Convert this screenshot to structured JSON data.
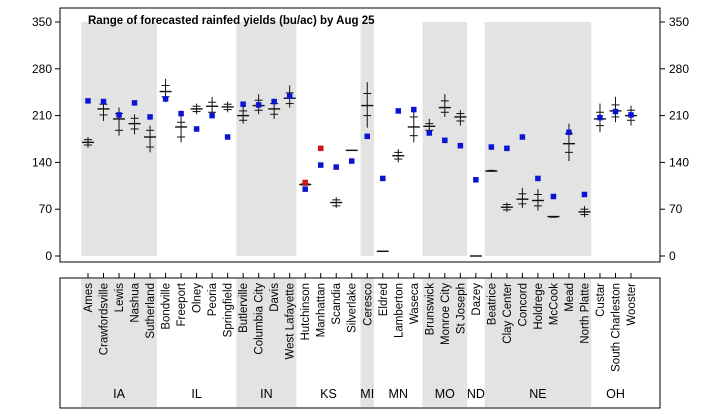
{
  "chart_data": {
    "type": "scatter",
    "title": "Range of forecasted rainfed yields (bu/ac) by Aug 25",
    "xlabel": "",
    "ylabel": "",
    "ylim": [
      0,
      350
    ],
    "y_ticks": [
      0,
      70,
      140,
      210,
      280,
      350
    ],
    "colors": {
      "shade": "#e3e3e3",
      "range_line": "#111111",
      "observed": "#0a14d2",
      "observed_alt": "#d21414"
    },
    "series": [
      {
        "name": "forecast_range",
        "description": "vertical line with tick marks"
      },
      {
        "name": "observed_point",
        "description": "square marker"
      }
    ],
    "groups": [
      {
        "state": "IA",
        "shaded": true,
        "stations": [
          "Ames",
          "Crawfordsville",
          "Lewis",
          "Nashua",
          "Sutherland"
        ]
      },
      {
        "state": "IL",
        "shaded": false,
        "stations": [
          "Bondville",
          "Freeport",
          "Olney",
          "Peoria",
          "Springfield"
        ]
      },
      {
        "state": "IN",
        "shaded": true,
        "stations": [
          "Butlerville",
          "Columbia City",
          "Davis",
          "West Lafayette"
        ]
      },
      {
        "state": "KS",
        "shaded": false,
        "stations": [
          "Hutchinson",
          "Manhattan",
          "Scandia",
          "Silverlake"
        ]
      },
      {
        "state": "MI",
        "shaded": true,
        "stations": [
          "Ceresco"
        ]
      },
      {
        "state": "MN",
        "shaded": false,
        "stations": [
          "Eldred",
          "Lamberton",
          "Waseca"
        ]
      },
      {
        "state": "MO",
        "shaded": true,
        "stations": [
          "Brunswick",
          "Monroe City",
          "St Joseph"
        ]
      },
      {
        "state": "ND",
        "shaded": false,
        "stations": [
          "Dazey"
        ]
      },
      {
        "state": "NE",
        "shaded": true,
        "stations": [
          "Beatrice",
          "Clay Center",
          "Concord",
          "Holdrege",
          "McCook",
          "Mead",
          "North Platte"
        ]
      },
      {
        "state": "OH",
        "shaded": false,
        "stations": [
          "Custar",
          "South Charleston",
          "Wooster"
        ]
      }
    ],
    "points": [
      {
        "station": "Ames",
        "lo": 162,
        "q1": 166,
        "median": 170,
        "q3": 174,
        "hi": 178,
        "observed": 232,
        "observed_color": "blue"
      },
      {
        "station": "Crawfordsville",
        "lo": 202,
        "q1": 211,
        "median": 220,
        "q3": 227,
        "hi": 235,
        "observed": 231,
        "observed_color": "blue"
      },
      {
        "station": "Lewis",
        "lo": 180,
        "q1": 188,
        "median": 205,
        "q3": 213,
        "hi": 222,
        "observed": 211,
        "observed_color": "blue"
      },
      {
        "station": "Nashua",
        "lo": 182,
        "q1": 190,
        "median": 198,
        "q3": 206,
        "hi": 212,
        "observed": 229,
        "observed_color": "blue"
      },
      {
        "station": "Sutherland",
        "lo": 155,
        "q1": 163,
        "median": 178,
        "q3": 188,
        "hi": 195,
        "observed": 208,
        "observed_color": "blue"
      },
      {
        "station": "Bondville",
        "lo": 230,
        "q1": 238,
        "median": 246,
        "q3": 255,
        "hi": 265,
        "observed": 235,
        "observed_color": "blue"
      },
      {
        "station": "Freeport",
        "lo": 170,
        "q1": 178,
        "median": 193,
        "q3": 200,
        "hi": 210,
        "observed": 213,
        "observed_color": "blue"
      },
      {
        "station": "Olney",
        "lo": 212,
        "q1": 216,
        "median": 220,
        "q3": 224,
        "hi": 228,
        "observed": 190,
        "observed_color": "blue"
      },
      {
        "station": "Peoria",
        "lo": 208,
        "q1": 215,
        "median": 224,
        "q3": 230,
        "hi": 238,
        "observed": 210,
        "observed_color": "blue"
      },
      {
        "station": "Springfield",
        "lo": 215,
        "q1": 219,
        "median": 223,
        "q3": 227,
        "hi": 231,
        "observed": 178,
        "observed_color": "blue"
      },
      {
        "station": "Butlerville",
        "lo": 198,
        "q1": 203,
        "median": 210,
        "q3": 217,
        "hi": 225,
        "observed": 227,
        "observed_color": "blue"
      },
      {
        "station": "Columbia City",
        "lo": 212,
        "q1": 218,
        "median": 225,
        "q3": 233,
        "hi": 242,
        "observed": 226,
        "observed_color": "blue"
      },
      {
        "station": "Davis",
        "lo": 205,
        "q1": 212,
        "median": 220,
        "q3": 228,
        "hi": 235,
        "observed": 231,
        "observed_color": "blue"
      },
      {
        "station": "West Lafayette",
        "lo": 222,
        "q1": 228,
        "median": 236,
        "q3": 244,
        "hi": 255,
        "observed": 239,
        "observed_color": "blue"
      },
      {
        "station": "Hutchinson",
        "lo": 105,
        "q1": 106,
        "median": 107,
        "q3": 108,
        "hi": 109,
        "observed": 100,
        "observed_color": "blue",
        "observed_2": 110,
        "observed_2_color": "red"
      },
      {
        "station": "Manhattan",
        "lo": null,
        "q1": null,
        "median": null,
        "q3": null,
        "hi": null,
        "observed": 136,
        "observed_color": "blue",
        "observed_2": 161,
        "observed_2_color": "red"
      },
      {
        "station": "Scandia",
        "lo": 72,
        "q1": 75,
        "median": 80,
        "q3": 84,
        "hi": 88,
        "observed": 133,
        "observed_color": "blue"
      },
      {
        "station": "Silverlake",
        "lo": 158,
        "q1": 158,
        "median": 158,
        "q3": 158,
        "hi": 158,
        "observed": 142,
        "observed_color": "blue"
      },
      {
        "station": "Ceresco",
        "lo": 192,
        "q1": 210,
        "median": 225,
        "q3": 243,
        "hi": 260,
        "observed": 179,
        "observed_color": "blue"
      },
      {
        "station": "Eldred",
        "lo": 7,
        "q1": 7,
        "median": 7,
        "q3": 7,
        "hi": 7,
        "observed": 116,
        "observed_color": "blue"
      },
      {
        "station": "Lamberton",
        "lo": 140,
        "q1": 145,
        "median": 150,
        "q3": 155,
        "hi": 160,
        "observed": 217,
        "observed_color": "blue"
      },
      {
        "station": "Waseca",
        "lo": 170,
        "q1": 180,
        "median": 193,
        "q3": 208,
        "hi": 220,
        "observed": 219,
        "observed_color": "blue"
      },
      {
        "station": "Brunswick",
        "lo": 182,
        "q1": 188,
        "median": 194,
        "q3": 198,
        "hi": 205,
        "observed": 184,
        "observed_color": "blue"
      },
      {
        "station": "Monroe City",
        "lo": 208,
        "q1": 215,
        "median": 222,
        "q3": 232,
        "hi": 242,
        "observed": 173,
        "observed_color": "blue"
      },
      {
        "station": "St Joseph",
        "lo": 195,
        "q1": 202,
        "median": 208,
        "q3": 213,
        "hi": 218,
        "observed": 165,
        "observed_color": "blue"
      },
      {
        "station": "Dazey",
        "lo": 0,
        "q1": 0,
        "median": 0,
        "q3": 0,
        "hi": 0,
        "observed": 114,
        "observed_color": "blue"
      },
      {
        "station": "Beatrice",
        "lo": 126,
        "q1": 127,
        "median": 127,
        "q3": 128,
        "hi": 129,
        "observed": 163,
        "observed_color": "blue"
      },
      {
        "station": "Clay Center",
        "lo": 66,
        "q1": 69,
        "median": 73,
        "q3": 77,
        "hi": 80,
        "observed": 161,
        "observed_color": "blue"
      },
      {
        "station": "Concord",
        "lo": 72,
        "q1": 78,
        "median": 85,
        "q3": 93,
        "hi": 102,
        "observed": 178,
        "observed_color": "blue"
      },
      {
        "station": "Holdrege",
        "lo": 68,
        "q1": 75,
        "median": 83,
        "q3": 92,
        "hi": 100,
        "observed": 116,
        "observed_color": "blue"
      },
      {
        "station": "McCook",
        "lo": 58,
        "q1": 58,
        "median": 59,
        "q3": 59,
        "hi": 60,
        "observed": 89,
        "observed_color": "blue"
      },
      {
        "station": "Mead",
        "lo": 142,
        "q1": 155,
        "median": 168,
        "q3": 183,
        "hi": 198,
        "observed": 185,
        "observed_color": "blue"
      },
      {
        "station": "North Platte",
        "lo": 58,
        "q1": 62,
        "median": 66,
        "q3": 70,
        "hi": 75,
        "observed": 92,
        "observed_color": "blue"
      },
      {
        "station": "Custar",
        "lo": 185,
        "q1": 195,
        "median": 205,
        "q3": 215,
        "hi": 228,
        "observed": 207,
        "observed_color": "blue"
      },
      {
        "station": "South Charleston",
        "lo": 200,
        "q1": 208,
        "median": 217,
        "q3": 226,
        "hi": 238,
        "observed": 216,
        "observed_color": "blue"
      },
      {
        "station": "Wooster",
        "lo": 195,
        "q1": 203,
        "median": 210,
        "q3": 218,
        "hi": 225,
        "observed": 211,
        "observed_color": "blue"
      }
    ]
  }
}
